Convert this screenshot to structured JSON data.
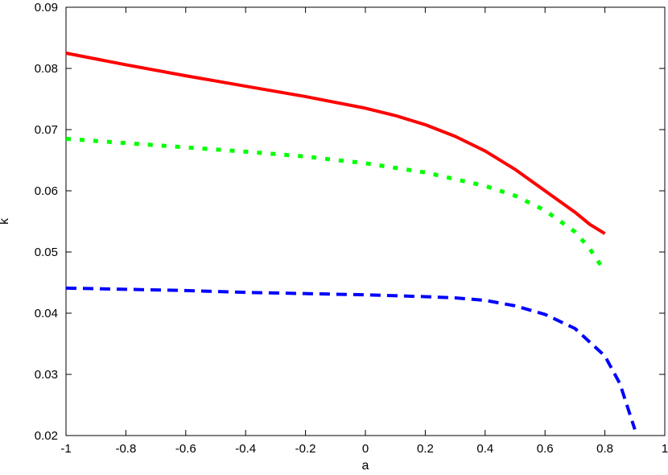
{
  "chart_data": {
    "type": "line",
    "xlabel": "a",
    "ylabel": "k",
    "xlim": [
      -1,
      1
    ],
    "ylim": [
      0.02,
      0.09
    ],
    "xticks": [
      "-1",
      "-0.8",
      "-0.6",
      "-0.4",
      "-0.2",
      "0",
      "0.2",
      "0.4",
      "0.6",
      "0.8",
      "1"
    ],
    "yticks": [
      "0.02",
      "0.03",
      "0.04",
      "0.05",
      "0.06",
      "0.07",
      "0.08",
      "0.09"
    ],
    "grid": false,
    "series": [
      {
        "color": "#ff0000",
        "style": "solid",
        "points": [
          [
            -1,
            0.0825
          ],
          [
            -0.8,
            0.0806
          ],
          [
            -0.6,
            0.0788
          ],
          [
            -0.4,
            0.0771
          ],
          [
            -0.2,
            0.0754
          ],
          [
            0,
            0.0735
          ],
          [
            0.1,
            0.0723
          ],
          [
            0.2,
            0.0708
          ],
          [
            0.3,
            0.0689
          ],
          [
            0.4,
            0.0665
          ],
          [
            0.5,
            0.0635
          ],
          [
            0.6,
            0.06
          ],
          [
            0.7,
            0.0565
          ],
          [
            0.75,
            0.0545
          ],
          [
            0.8,
            0.053
          ]
        ]
      },
      {
        "color": "#00ff00",
        "style": "dotted",
        "points": [
          [
            -1,
            0.0685
          ],
          [
            -0.8,
            0.0678
          ],
          [
            -0.6,
            0.0671
          ],
          [
            -0.4,
            0.0664
          ],
          [
            -0.2,
            0.0656
          ],
          [
            0,
            0.0645
          ],
          [
            0.2,
            0.063
          ],
          [
            0.4,
            0.0608
          ],
          [
            0.5,
            0.0592
          ],
          [
            0.6,
            0.0568
          ],
          [
            0.7,
            0.0533
          ],
          [
            0.75,
            0.0505
          ],
          [
            0.8,
            0.0468
          ]
        ]
      },
      {
        "color": "#0000ff",
        "style": "dashed",
        "points": [
          [
            -1,
            0.0441
          ],
          [
            -0.8,
            0.0439
          ],
          [
            -0.6,
            0.0437
          ],
          [
            -0.4,
            0.0434
          ],
          [
            -0.2,
            0.0432
          ],
          [
            0,
            0.043
          ],
          [
            0.2,
            0.0427
          ],
          [
            0.3,
            0.0425
          ],
          [
            0.4,
            0.0421
          ],
          [
            0.5,
            0.0412
          ],
          [
            0.6,
            0.0398
          ],
          [
            0.7,
            0.0375
          ],
          [
            0.8,
            0.033
          ],
          [
            0.85,
            0.0285
          ],
          [
            0.9,
            0.021
          ]
        ]
      }
    ]
  }
}
